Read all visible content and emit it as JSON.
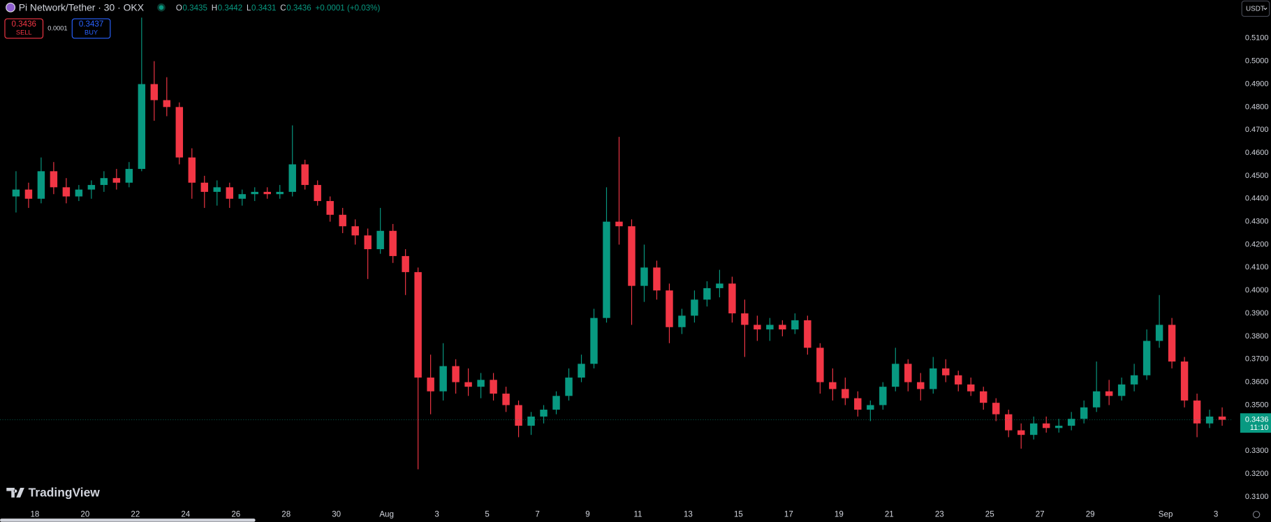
{
  "toolbar": {
    "symbol": "Pi Network/Tether · 30 · OKX",
    "ohlc_legend": [
      {
        "label": "O",
        "value": 0.3435
      },
      {
        "label": "H",
        "value": 0.3442
      },
      {
        "label": "L",
        "value": 0.3431
      },
      {
        "label": "C",
        "value": 0.3436
      }
    ],
    "change": "+0.0001 (+0.03%)",
    "sell_price": 0.3436,
    "sell_label": "SELL",
    "spread": 0.0001,
    "buy_price": 0.3437,
    "buy_label": "BUY",
    "currency": "USDT",
    "brand": "TradingView"
  },
  "chart_data": {
    "type": "candlestick",
    "up_color": "#089981",
    "down_color": "#f23645",
    "last_price": 0.3436,
    "countdown": "11:10",
    "categories": [
      null,
      null,
      "18",
      null,
      null,
      null,
      "20",
      null,
      null,
      null,
      "22",
      null,
      null,
      null,
      "24",
      null,
      null,
      null,
      "26",
      null,
      null,
      null,
      "28",
      null,
      null,
      null,
      "30",
      null,
      null,
      null,
      "Aug",
      null,
      null,
      null,
      "3",
      null,
      null,
      null,
      "5",
      null,
      null,
      null,
      "7",
      null,
      null,
      null,
      "9",
      null,
      null,
      null,
      "11",
      null,
      null,
      null,
      "13",
      null,
      null,
      null,
      "15",
      null,
      null,
      null,
      "17",
      null,
      null,
      null,
      "19",
      null,
      null,
      null,
      "21",
      null,
      null,
      null,
      "23",
      null,
      null,
      null,
      "25",
      null,
      null,
      null,
      "27",
      null,
      null,
      null,
      "29",
      null,
      null,
      null,
      null,
      null,
      "Sep",
      null,
      null,
      null,
      "3"
    ],
    "open": [
      0.441,
      0.444,
      0.44,
      0.452,
      0.445,
      0.441,
      0.444,
      0.446,
      0.449,
      0.447,
      0.453,
      0.49,
      0.483,
      0.48,
      0.458,
      0.447,
      0.443,
      0.445,
      0.44,
      0.442,
      0.443,
      0.442,
      0.443,
      0.455,
      0.446,
      0.439,
      0.433,
      0.428,
      0.424,
      0.418,
      0.426,
      0.415,
      0.408,
      0.362,
      0.356,
      0.367,
      0.36,
      0.358,
      0.361,
      0.355,
      0.35,
      0.341,
      0.345,
      0.348,
      0.354,
      0.362,
      0.368,
      0.388,
      0.43,
      0.428,
      0.402,
      0.41,
      0.4,
      0.384,
      0.389,
      0.396,
      0.401,
      0.403,
      0.39,
      0.385,
      0.383,
      0.385,
      0.383,
      0.387,
      0.375,
      0.36,
      0.357,
      0.353,
      0.348,
      0.35,
      0.358,
      0.368,
      0.36,
      0.357,
      0.366,
      0.363,
      0.359,
      0.356,
      0.351,
      0.346,
      0.339,
      0.337,
      0.342,
      0.34,
      0.341,
      0.344,
      0.349,
      0.356,
      0.354,
      0.359,
      0.363,
      0.378,
      0.385,
      0.369,
      0.352,
      0.342,
      0.345
    ],
    "high": [
      0.452,
      0.447,
      0.458,
      0.456,
      0.449,
      0.446,
      0.448,
      0.452,
      0.453,
      0.456,
      0.519,
      0.5,
      0.493,
      0.482,
      0.462,
      0.45,
      0.448,
      0.447,
      0.444,
      0.445,
      0.445,
      0.446,
      0.472,
      0.457,
      0.448,
      0.441,
      0.436,
      0.431,
      0.427,
      0.436,
      0.429,
      0.418,
      0.41,
      0.372,
      0.377,
      0.37,
      0.366,
      0.364,
      0.364,
      0.358,
      0.352,
      0.347,
      0.35,
      0.356,
      0.366,
      0.372,
      0.392,
      0.445,
      0.467,
      0.431,
      0.42,
      0.413,
      0.403,
      0.392,
      0.4,
      0.404,
      0.409,
      0.406,
      0.396,
      0.389,
      0.388,
      0.387,
      0.39,
      0.389,
      0.377,
      0.366,
      0.362,
      0.356,
      0.352,
      0.36,
      0.375,
      0.37,
      0.364,
      0.371,
      0.37,
      0.365,
      0.362,
      0.358,
      0.353,
      0.348,
      0.342,
      0.345,
      0.345,
      0.344,
      0.347,
      0.352,
      0.369,
      0.361,
      0.362,
      0.368,
      0.383,
      0.398,
      0.388,
      0.371,
      0.355,
      0.348,
      0.349
    ],
    "low": [
      0.434,
      0.436,
      0.438,
      0.442,
      0.438,
      0.439,
      0.44,
      0.443,
      0.444,
      0.445,
      0.452,
      0.474,
      0.476,
      0.455,
      0.44,
      0.436,
      0.437,
      0.436,
      0.437,
      0.439,
      0.44,
      0.44,
      0.441,
      0.444,
      0.437,
      0.43,
      0.425,
      0.42,
      0.405,
      0.416,
      0.412,
      0.398,
      0.322,
      0.346,
      0.352,
      0.355,
      0.354,
      0.353,
      0.352,
      0.347,
      0.336,
      0.337,
      0.342,
      0.346,
      0.352,
      0.36,
      0.366,
      0.386,
      0.42,
      0.385,
      0.395,
      0.396,
      0.377,
      0.381,
      0.386,
      0.393,
      0.397,
      0.386,
      0.371,
      0.378,
      0.378,
      0.38,
      0.381,
      0.372,
      0.355,
      0.352,
      0.35,
      0.345,
      0.343,
      0.348,
      0.356,
      0.356,
      0.352,
      0.355,
      0.36,
      0.356,
      0.354,
      0.348,
      0.343,
      0.336,
      0.331,
      0.335,
      0.338,
      0.338,
      0.339,
      0.342,
      0.347,
      0.35,
      0.352,
      0.356,
      0.361,
      0.375,
      0.366,
      0.349,
      0.336,
      0.34,
      0.341
    ],
    "close": [
      0.444,
      0.44,
      0.452,
      0.445,
      0.441,
      0.444,
      0.446,
      0.449,
      0.447,
      0.453,
      0.49,
      0.483,
      0.48,
      0.458,
      0.447,
      0.443,
      0.445,
      0.44,
      0.442,
      0.443,
      0.442,
      0.443,
      0.455,
      0.446,
      0.439,
      0.433,
      0.428,
      0.424,
      0.418,
      0.426,
      0.415,
      0.408,
      0.362,
      0.356,
      0.367,
      0.36,
      0.358,
      0.361,
      0.355,
      0.35,
      0.341,
      0.345,
      0.348,
      0.354,
      0.362,
      0.368,
      0.388,
      0.43,
      0.428,
      0.402,
      0.41,
      0.4,
      0.384,
      0.389,
      0.396,
      0.401,
      0.403,
      0.39,
      0.385,
      0.383,
      0.385,
      0.383,
      0.387,
      0.375,
      0.36,
      0.357,
      0.353,
      0.348,
      0.35,
      0.358,
      0.368,
      0.36,
      0.357,
      0.366,
      0.363,
      0.359,
      0.356,
      0.351,
      0.346,
      0.339,
      0.337,
      0.342,
      0.34,
      0.341,
      0.344,
      0.349,
      0.356,
      0.354,
      0.359,
      0.363,
      0.378,
      0.385,
      0.369,
      0.352,
      0.342,
      0.345,
      0.3436
    ],
    "ylim": [
      0.3058,
      0.5266
    ],
    "yticks": [
      {
        "value": 0.31,
        "label": "0.3100"
      },
      {
        "value": 0.32,
        "label": "0.3200"
      },
      {
        "value": 0.33,
        "label": "0.3300"
      },
      {
        "value": 0.34,
        "label": "0.3400"
      },
      {
        "value": 0.35,
        "label": "0.3500"
      },
      {
        "value": 0.36,
        "label": "0.3600"
      },
      {
        "value": 0.37,
        "label": "0.3700"
      },
      {
        "value": 0.38,
        "label": "0.3800"
      },
      {
        "value": 0.39,
        "label": "0.3900"
      },
      {
        "value": 0.4,
        "label": "0.4000"
      },
      {
        "value": 0.41,
        "label": "0.4100"
      },
      {
        "value": 0.42,
        "label": "0.4200"
      },
      {
        "value": 0.43,
        "label": "0.4300"
      },
      {
        "value": 0.44,
        "label": "0.4400"
      },
      {
        "value": 0.45,
        "label": "0.4500"
      },
      {
        "value": 0.46,
        "label": "0.4600"
      },
      {
        "value": 0.47,
        "label": "0.4700"
      },
      {
        "value": 0.48,
        "label": "0.4800"
      },
      {
        "value": 0.49,
        "label": "0.4900"
      },
      {
        "value": 0.5,
        "label": "0.5000"
      },
      {
        "value": 0.51,
        "label": "0.5100"
      }
    ],
    "grid": false
  }
}
